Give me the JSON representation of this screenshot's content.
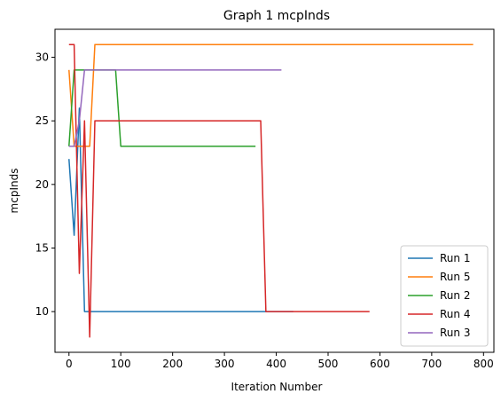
{
  "chart_data": {
    "type": "line",
    "title": "Graph 1 mcpInds",
    "xlabel": "Iteration Number",
    "ylabel": "mcpInds",
    "xlim": [
      -27,
      820
    ],
    "ylim": [
      6.8,
      32.2
    ],
    "xticks": [
      0,
      100,
      200,
      300,
      400,
      500,
      600,
      700,
      800
    ],
    "yticks": [
      10,
      15,
      20,
      25,
      30
    ],
    "grid": false,
    "legend_position": "bottom-right",
    "series": [
      {
        "name": "Run 1",
        "color": "#1f77b4",
        "points": [
          [
            0,
            22
          ],
          [
            10,
            16
          ],
          [
            20,
            26
          ],
          [
            30,
            10
          ],
          [
            433,
            10
          ]
        ]
      },
      {
        "name": "Run 5",
        "color": "#ff7f0e",
        "points": [
          [
            0,
            29
          ],
          [
            10,
            23
          ],
          [
            40,
            23
          ],
          [
            50,
            31
          ],
          [
            780,
            31
          ]
        ]
      },
      {
        "name": "Run 2",
        "color": "#2ca02c",
        "points": [
          [
            0,
            23
          ],
          [
            10,
            29
          ],
          [
            90,
            29
          ],
          [
            100,
            23
          ],
          [
            360,
            23
          ]
        ]
      },
      {
        "name": "Run 4",
        "color": "#d62728",
        "points": [
          [
            0,
            31
          ],
          [
            10,
            31
          ],
          [
            20,
            13
          ],
          [
            30,
            25
          ],
          [
            40,
            8
          ],
          [
            50,
            25
          ],
          [
            370,
            25
          ],
          [
            380,
            10
          ],
          [
            580,
            10
          ]
        ]
      },
      {
        "name": "Run 3",
        "color": "#9467bd",
        "points": [
          [
            0,
            23
          ],
          [
            10,
            23
          ],
          [
            20,
            25
          ],
          [
            30,
            29
          ],
          [
            410,
            29
          ]
        ]
      }
    ]
  }
}
